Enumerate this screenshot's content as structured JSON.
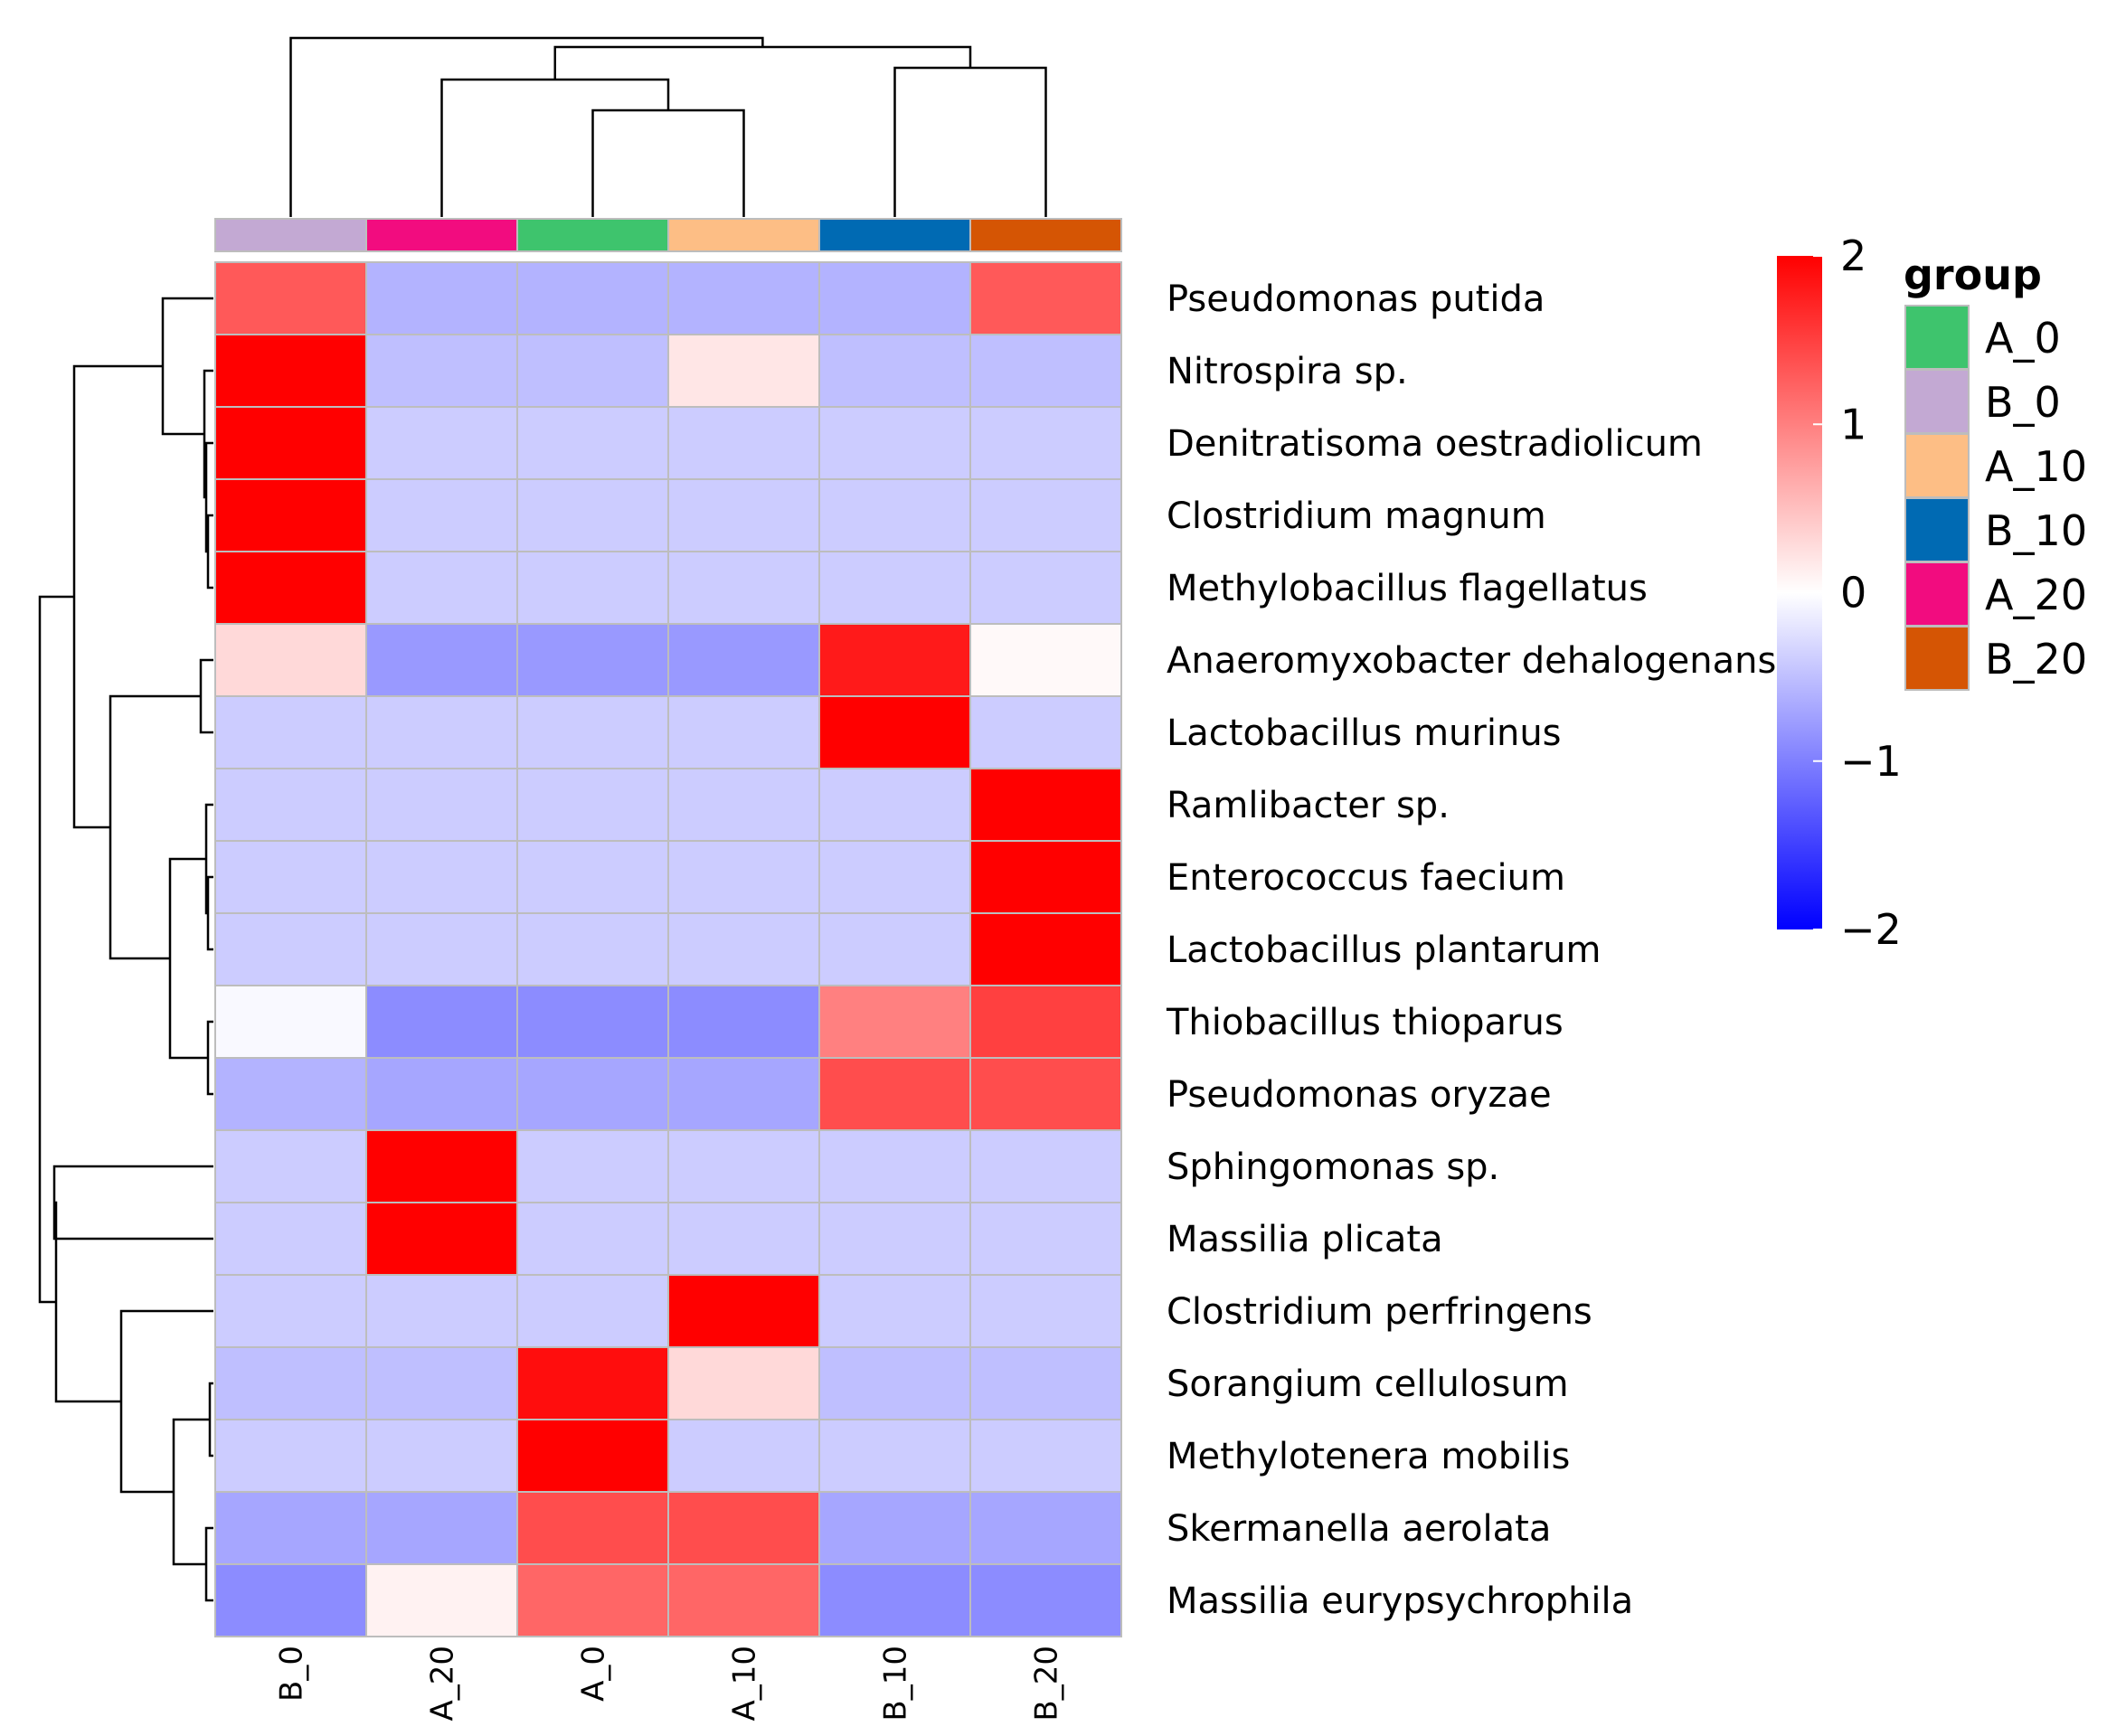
{
  "chart_data": {
    "type": "heatmap",
    "columns": [
      "B_0",
      "A_20",
      "A_0",
      "A_10",
      "B_10",
      "B_20"
    ],
    "rows": [
      "Pseudomonas putida",
      "Nitrospira sp.",
      "Denitratisoma oestradiolicum",
      "Clostridium magnum",
      "Methylobacillus flagellatus",
      "Anaeromyxobacter dehalogenans",
      "Lactobacillus murinus",
      "Ramlibacter sp.",
      "Enterococcus faecium",
      "Lactobacillus plantarum",
      "Thiobacillus thioparus",
      "Pseudomonas oryzae",
      "Sphingomonas sp.",
      "Massilia plicata",
      "Clostridium perfringens",
      "Sorangium cellulosum",
      "Methylotenera mobilis",
      "Skermanella aerolata",
      "Massilia eurypsychrophila"
    ],
    "values": [
      [
        1.3,
        -0.6,
        -0.6,
        -0.6,
        -0.6,
        1.3
      ],
      [
        2.0,
        -0.5,
        -0.5,
        0.2,
        -0.5,
        -0.5
      ],
      [
        2.0,
        -0.4,
        -0.4,
        -0.4,
        -0.4,
        -0.4
      ],
      [
        2.0,
        -0.4,
        -0.4,
        -0.4,
        -0.4,
        -0.4
      ],
      [
        2.0,
        -0.4,
        -0.4,
        -0.4,
        -0.4,
        -0.4
      ],
      [
        0.3,
        -0.8,
        -0.8,
        -0.8,
        1.8,
        0.05
      ],
      [
        -0.4,
        -0.4,
        -0.4,
        -0.4,
        2.0,
        -0.4
      ],
      [
        -0.4,
        -0.4,
        -0.4,
        -0.4,
        -0.4,
        2.0
      ],
      [
        -0.4,
        -0.4,
        -0.4,
        -0.4,
        -0.4,
        2.0
      ],
      [
        -0.4,
        -0.4,
        -0.4,
        -0.4,
        -0.4,
        2.0
      ],
      [
        -0.05,
        -0.9,
        -0.9,
        -0.9,
        1.0,
        1.5
      ],
      [
        -0.6,
        -0.7,
        -0.7,
        -0.7,
        1.4,
        1.4
      ],
      [
        -0.4,
        2.0,
        -0.4,
        -0.4,
        -0.4,
        -0.4
      ],
      [
        -0.4,
        2.0,
        -0.4,
        -0.4,
        -0.4,
        -0.4
      ],
      [
        -0.4,
        -0.4,
        -0.4,
        2.0,
        -0.4,
        -0.4
      ],
      [
        -0.5,
        -0.5,
        1.9,
        0.3,
        -0.5,
        -0.5
      ],
      [
        -0.4,
        -0.4,
        2.0,
        -0.4,
        -0.4,
        -0.4
      ],
      [
        -0.7,
        -0.7,
        1.4,
        1.4,
        -0.7,
        -0.7
      ],
      [
        -0.9,
        0.1,
        1.2,
        1.2,
        -0.9,
        -0.9
      ]
    ],
    "column_groups": [
      "B_0",
      "A_20",
      "A_0",
      "A_10",
      "B_10",
      "B_20"
    ],
    "color_scale": {
      "min": -2,
      "mid": 0,
      "max": 2,
      "low_color": "#0000ff",
      "mid_color": "#ffffff",
      "high_color": "#ff0000",
      "ticks": [
        2,
        1,
        0,
        -1,
        -2
      ]
    },
    "legend": {
      "title": "group",
      "placement": "right",
      "entries": [
        {
          "name": "A_0",
          "color": "#3ec46d"
        },
        {
          "name": "B_0",
          "color": "#c3a9d3"
        },
        {
          "name": "A_10",
          "color": "#fdbe85"
        },
        {
          "name": "B_10",
          "color": "#006ab3"
        },
        {
          "name": "A_20",
          "color": "#f20c7f"
        },
        {
          "name": "B_20",
          "color": "#d55504"
        }
      ]
    },
    "row_dendrogram": true,
    "column_dendrogram": true,
    "title": "",
    "xlabel": "",
    "ylabel": ""
  }
}
